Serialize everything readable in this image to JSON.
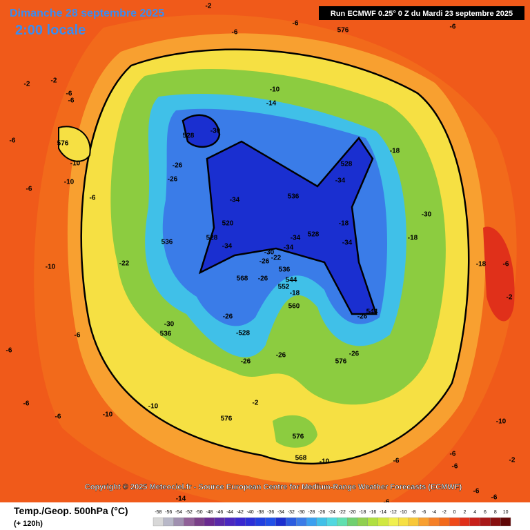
{
  "header": {
    "date": "Dimanche 28 septembre 2025",
    "time": "2:00 locale",
    "run": "Run ECMWF 0.25° 0 Z du Mardi 23 septembre 2025"
  },
  "copyright": "Copyright © 2025 Meteociel.fr - Source European Centre for Medium-Range Weather Forecasts (ECMWF)",
  "footer": {
    "title": "Temp./Geop. 500hPa (°C)",
    "lead": "(+ 120h)"
  },
  "contour_labels": [
    -6,
    -6,
    -2,
    -6,
    576,
    -2,
    -2,
    -6,
    -6,
    -6,
    576,
    -10,
    -10,
    -6,
    -6,
    -10,
    -6,
    -6,
    -6,
    -10,
    -10,
    -6,
    -10,
    -14,
    528,
    -30,
    -26,
    -26,
    -34,
    520,
    528,
    -34,
    536,
    -22,
    536,
    528,
    -34,
    -18,
    -18,
    -34,
    -34,
    528,
    -34,
    -30,
    -26,
    -22,
    536,
    544,
    552,
    -18,
    560,
    568,
    -26,
    -26,
    -30,
    536,
    -528,
    -26,
    -26,
    576,
    -26,
    -26,
    544,
    -30,
    -18,
    -18,
    -6,
    -2,
    -2,
    576,
    576,
    568,
    -10,
    -14,
    -10,
    -6,
    -6,
    -2,
    -6,
    -6,
    -6,
    -6
  ],
  "legend": {
    "labels": [
      -58,
      -56,
      -54,
      -52,
      -50,
      -48,
      -46,
      -44,
      -42,
      -40,
      -38,
      -36,
      -34,
      -32,
      -30,
      -28,
      -26,
      -24,
      -22,
      -20,
      -18,
      -16,
      -14,
      -12,
      -10,
      -8,
      -6,
      -4,
      -2,
      0,
      2,
      4,
      6,
      8,
      10
    ],
    "colors": [
      "#d8d8d8",
      "#b8b8c8",
      "#a090b0",
      "#906098",
      "#7a4088",
      "#6a2a90",
      "#5a2aa8",
      "#4a28c0",
      "#3828d0",
      "#2a30d8",
      "#2040e0",
      "#2050e8",
      "#1a2fd0",
      "#2a5ce0",
      "#3a7ce8",
      "#3aa0f0",
      "#40c0e8",
      "#50d8e0",
      "#60e0b0",
      "#70d070",
      "#90d050",
      "#b0e040",
      "#d0e840",
      "#f0f050",
      "#f6e043",
      "#f8c838",
      "#f8a030",
      "#f58028",
      "#f26a1b",
      "#ef4a1a",
      "#e0301a",
      "#c8201a",
      "#a81818",
      "#881010",
      "#600808"
    ]
  }
}
